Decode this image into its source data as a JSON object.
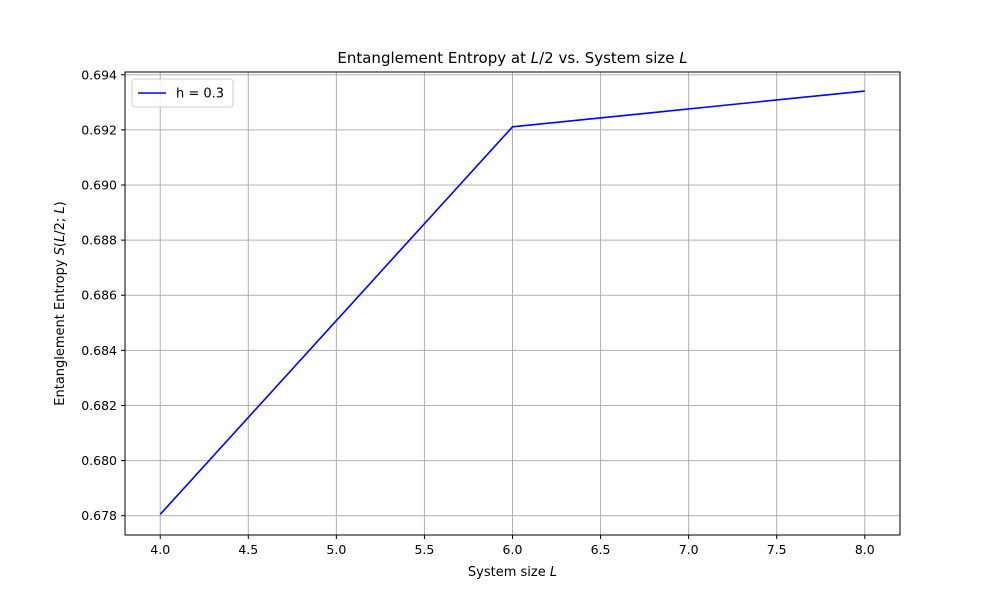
{
  "chart_data": {
    "type": "line",
    "title_parts": [
      {
        "text": "Entanglement Entropy at ",
        "italic": false
      },
      {
        "text": "L",
        "italic": true
      },
      {
        "text": "/2 vs. System size ",
        "italic": false
      },
      {
        "text": "L",
        "italic": true
      }
    ],
    "xlabel_parts": [
      {
        "text": "System size ",
        "italic": false
      },
      {
        "text": "L",
        "italic": true
      }
    ],
    "ylabel_parts": [
      {
        "text": "Entanglement Entropy ",
        "italic": false
      },
      {
        "text": "S",
        "italic": true
      },
      {
        "text": "(",
        "italic": false
      },
      {
        "text": "L",
        "italic": true
      },
      {
        "text": "/2; ",
        "italic": false
      },
      {
        "text": "L",
        "italic": true
      },
      {
        "text": ")",
        "italic": false
      }
    ],
    "xlim": [
      3.8,
      8.2
    ],
    "ylim": [
      0.6773,
      0.6941
    ],
    "x_ticks": [
      "4.0",
      "4.5",
      "5.0",
      "5.5",
      "6.0",
      "6.5",
      "7.0",
      "7.5",
      "8.0"
    ],
    "y_ticks": [
      "0.678",
      "0.680",
      "0.682",
      "0.684",
      "0.686",
      "0.688",
      "0.690",
      "0.692",
      "0.694"
    ],
    "grid": true,
    "legend_placement": "top-left",
    "series": [
      {
        "name": "h = 0.3",
        "color": "#0000ff",
        "x": [
          4,
          6,
          8
        ],
        "y": [
          0.67805,
          0.69211,
          0.69341
        ]
      }
    ]
  }
}
